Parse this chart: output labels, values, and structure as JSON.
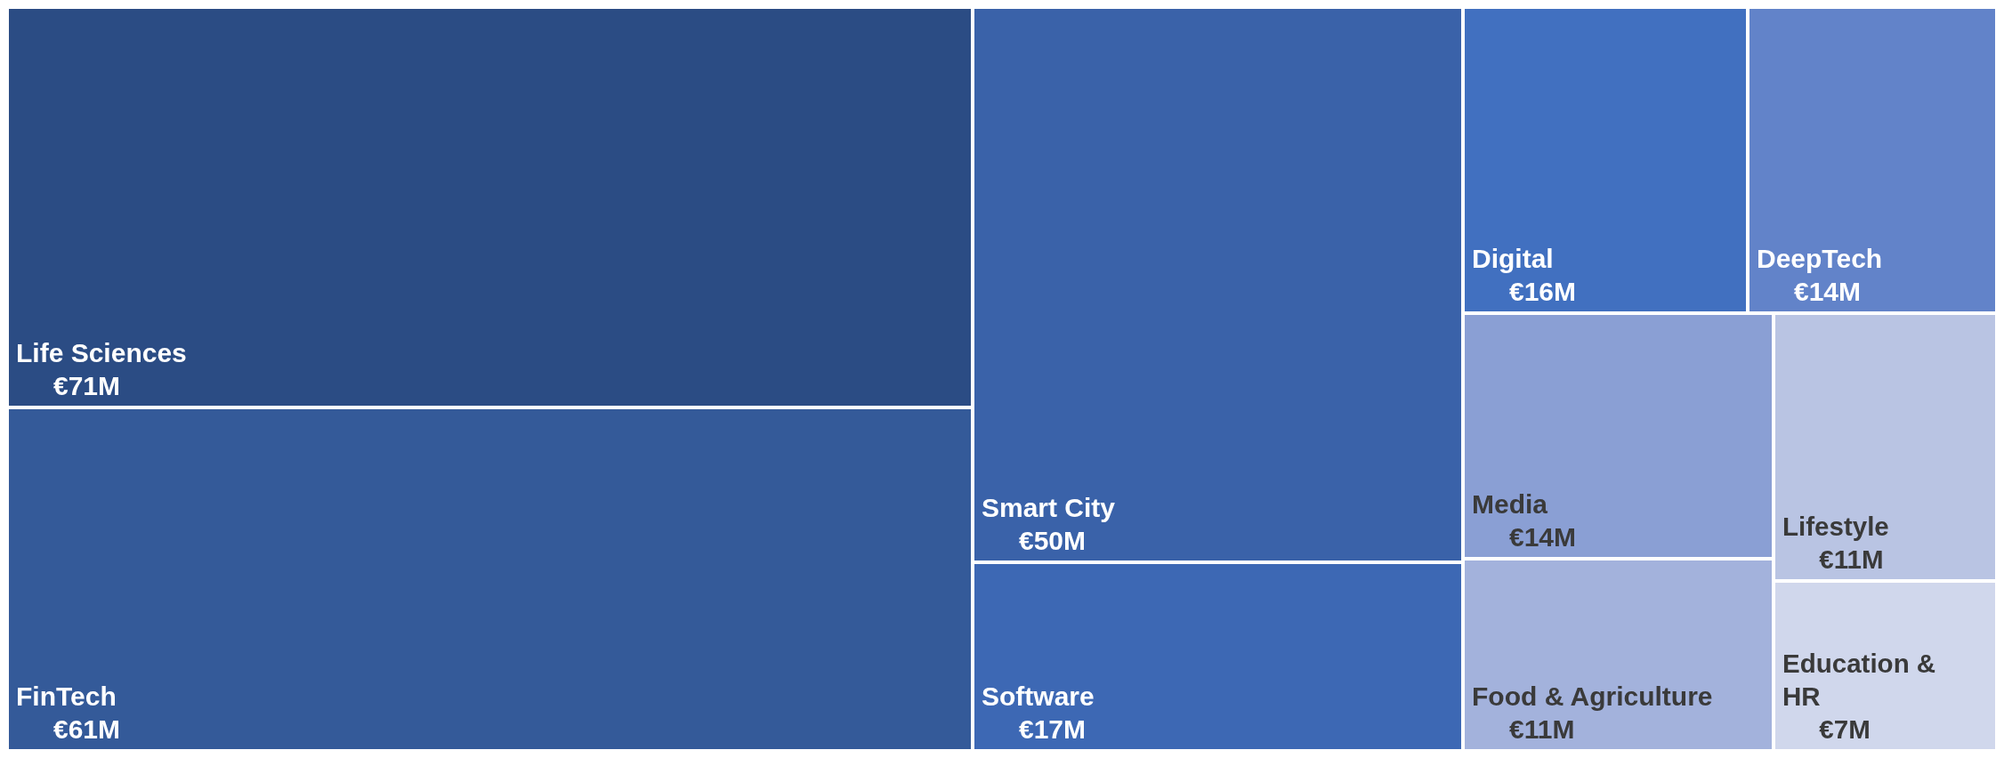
{
  "chart_data": {
    "type": "other",
    "categories": [
      "Life Sciences",
      "FinTech",
      "Smart City",
      "Software",
      "Digital",
      "DeepTech",
      "Media",
      "Food & Agriculture",
      "Lifestyle",
      "Education & HR"
    ],
    "values": [
      71,
      61,
      50,
      17,
      16,
      14,
      14,
      11,
      11,
      7
    ],
    "value_labels": [
      "€71M",
      "€61M",
      "€50M",
      "€17M",
      "€16M",
      "€14M",
      "€14M",
      "€11M",
      "€11M",
      "€7M"
    ],
    "colors": [
      "#2b4c84",
      "#345a99",
      "#3a62a9",
      "#3d68b4",
      "#4170c0",
      "#6283c9",
      "#8a9fd4",
      "#a3b2dc",
      "#b9c4e3",
      "#d0d7ec"
    ]
  }
}
